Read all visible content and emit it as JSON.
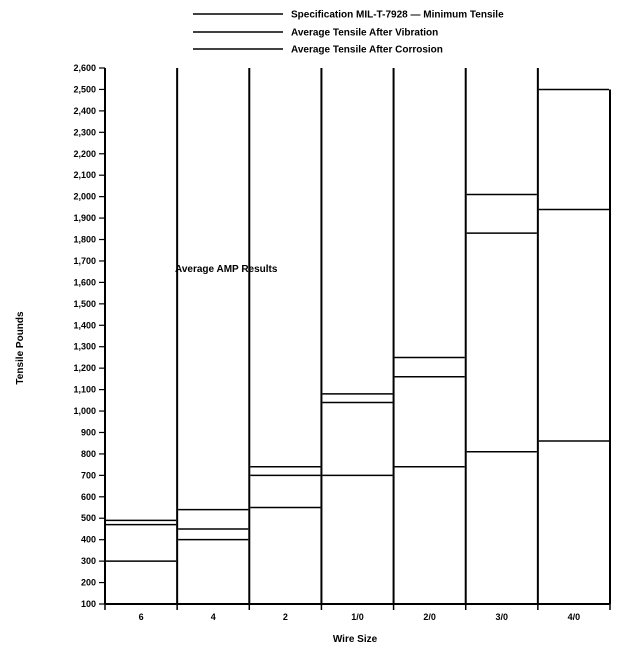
{
  "chart_data": {
    "type": "bar",
    "title": "",
    "xlabel": "Wire Size",
    "ylabel": "Tensile Pounds",
    "categories": [
      "6",
      "4",
      "2",
      "1/0",
      "2/0",
      "3/0",
      "4/0"
    ],
    "ylim": [
      100,
      2600
    ],
    "ytick_step": 100,
    "y_ticks": [
      "100",
      "200",
      "300",
      "400",
      "500",
      "600",
      "700",
      "800",
      "900",
      "1,000",
      "1,100",
      "1,200",
      "1,300",
      "1,400",
      "1,500",
      "1,600",
      "1,700",
      "1,800",
      "1,900",
      "2,000",
      "2,100",
      "2,200",
      "2,300",
      "2,400",
      "2,500",
      "2,600"
    ],
    "legend": {
      "placement": "top-right",
      "entries": [
        "Specification MIL-T-7928 — Minimum Tensile",
        "Average Tensile After Vibration",
        "Average Tensile After Corrosion"
      ]
    },
    "annotation": "Average AMP Results",
    "series": [
      {
        "name": "Average Tensile After Corrosion",
        "values": [
          470,
          450,
          740,
          1080,
          1250,
          2010,
          2500
        ]
      },
      {
        "name": "Average Tensile After Vibration",
        "values": [
          490,
          540,
          700,
          1040,
          1160,
          1830,
          1940
        ]
      },
      {
        "name": "Specification MIL-T-7928 — Minimum Tensile",
        "values": [
          300,
          400,
          550,
          700,
          740,
          810,
          860
        ]
      }
    ],
    "grid": false
  }
}
